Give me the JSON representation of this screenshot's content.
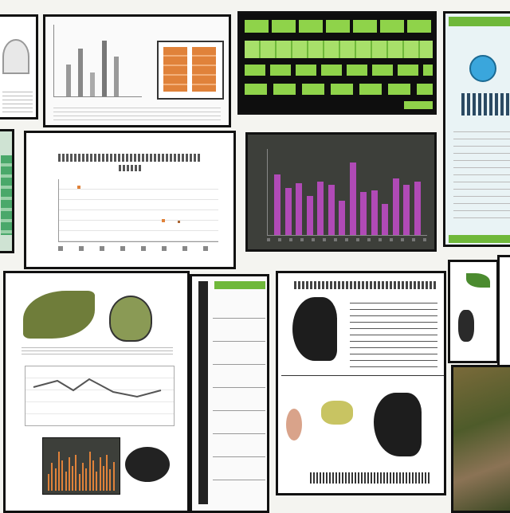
{
  "collage": {
    "tiles": [
      {
        "name": "tile-top-left-partial"
      },
      {
        "name": "tile-top-bar-chart-with-orange-panel"
      },
      {
        "name": "tile-green-spreadsheet"
      },
      {
        "name": "tile-blue-icon-document"
      },
      {
        "name": "tile-left-edge-green-chart"
      },
      {
        "name": "tile-line-chart-with-scatter"
      },
      {
        "name": "tile-purple-bar-chart"
      },
      {
        "name": "tile-right-edge-text-document"
      },
      {
        "name": "tile-leaf-illustration-report"
      },
      {
        "name": "tile-narrow-list-panel"
      },
      {
        "name": "tile-bird-illustration-document"
      },
      {
        "name": "tile-plant-photo-strip"
      },
      {
        "name": "tile-terrain-photo"
      }
    ]
  },
  "colors": {
    "frame": "#111111",
    "green": "#8fd34a",
    "orange": "#e0823a",
    "purple": "#b04ab6",
    "dark_chart_bg": "#3d3f3a",
    "blue": "#3aa6dc"
  },
  "chart_tiles": [
    {
      "id": "purple-bars",
      "bar_count": 14
    },
    {
      "id": "orange-bars",
      "bar_count": 20
    }
  ]
}
